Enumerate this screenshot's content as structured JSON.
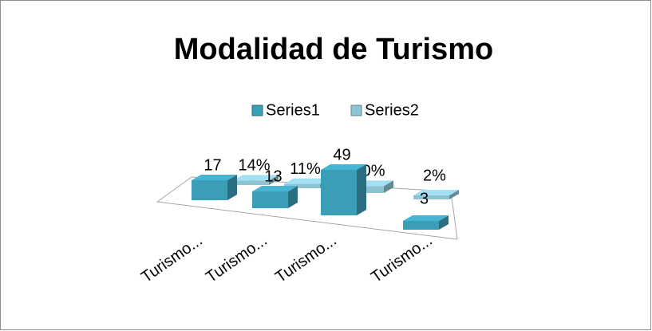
{
  "chart_data": {
    "type": "bar3d",
    "title": "Modalidad de Turismo",
    "categories": [
      "Turismo...",
      "Turismo...",
      "Turismo...",
      "Turismo..."
    ],
    "series": [
      {
        "name": "Series1",
        "color": "#3c9db6",
        "values": [
          17,
          13,
          49,
          3
        ]
      },
      {
        "name": "Series2",
        "color": "#8ec3d3",
        "values": [
          14,
          11,
          40,
          2
        ],
        "value_labels": [
          "14%",
          "11%",
          "40%",
          "2%"
        ]
      }
    ]
  }
}
